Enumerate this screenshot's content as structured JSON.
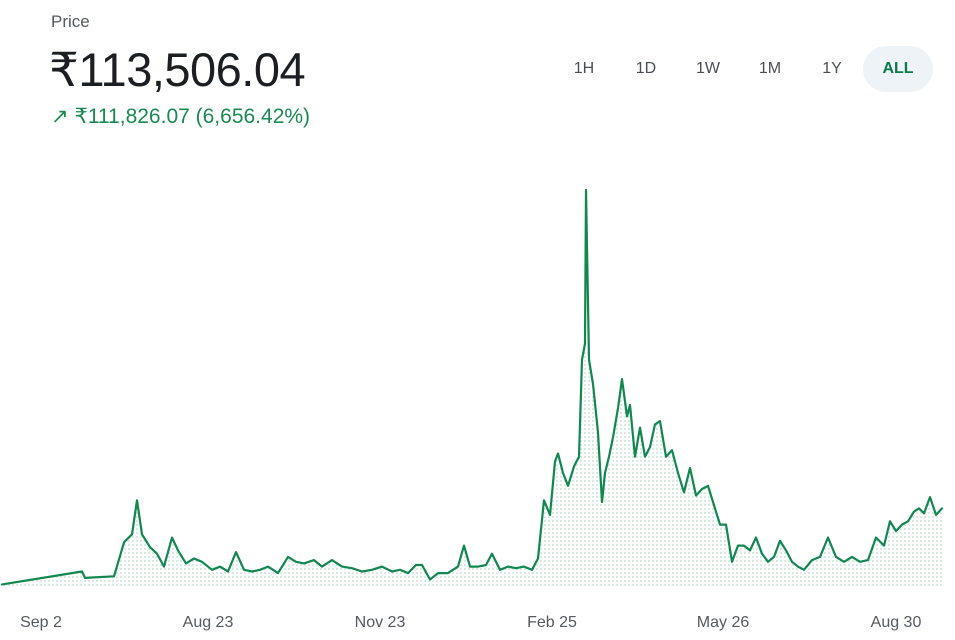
{
  "header": {
    "label": "Price",
    "price": "₹113,506.04",
    "change_icon": "trend-up-arrow-icon",
    "change_arrow": "↗",
    "change_text": "₹111,826.07 (6,656.42%)"
  },
  "ranges": [
    {
      "label": "1H",
      "active": false
    },
    {
      "label": "1D",
      "active": false
    },
    {
      "label": "1W",
      "active": false
    },
    {
      "label": "1M",
      "active": false
    },
    {
      "label": "1Y",
      "active": false
    },
    {
      "label": "ALL",
      "active": true
    }
  ],
  "colors": {
    "line": "#12874f",
    "fill": "#12874f",
    "positive": "#1a8a52",
    "active_bg": "#eef3f8"
  },
  "chart_data": {
    "type": "area",
    "title": "",
    "xlabel": "",
    "ylabel": "",
    "ylim": [
      0,
      245000
    ],
    "grid": false,
    "x_tick_labels": [
      "Sep 2",
      "Aug 23",
      "Nov 23",
      "Feb 25",
      "May 26",
      "Aug 30"
    ],
    "x": [
      0,
      80,
      83,
      112,
      122,
      130,
      135,
      140,
      148,
      155,
      162,
      170,
      176,
      184,
      192,
      200,
      210,
      218,
      226,
      234,
      242,
      250,
      258,
      266,
      276,
      286,
      294,
      302,
      312,
      320,
      330,
      340,
      350,
      360,
      370,
      380,
      390,
      398,
      406,
      414,
      420,
      428,
      436,
      446,
      456,
      462,
      468,
      476,
      484,
      490,
      498,
      506,
      514,
      522,
      530,
      536,
      542,
      548,
      553,
      556,
      561,
      566,
      572,
      577,
      580,
      583,
      584,
      587,
      591,
      596,
      600,
      603,
      607,
      611,
      616,
      620,
      625,
      628,
      633,
      638,
      643,
      648,
      653,
      658,
      664,
      670,
      676,
      682,
      688,
      694,
      700,
      706,
      712,
      718,
      724,
      730,
      736,
      742,
      748,
      754,
      760,
      766,
      772,
      778,
      784,
      790,
      796,
      802,
      810,
      818,
      826,
      834,
      842,
      850,
      858,
      866,
      874,
      882,
      888,
      894,
      900,
      906,
      912,
      917,
      922,
      928,
      934,
      940
    ],
    "values": [
      1000,
      9000,
      5000,
      6000,
      27000,
      32000,
      53000,
      32000,
      24000,
      20000,
      12000,
      30000,
      22000,
      14000,
      17000,
      15000,
      10000,
      12000,
      9000,
      21000,
      10000,
      9000,
      10000,
      12000,
      8000,
      18000,
      15000,
      14000,
      16000,
      12000,
      16000,
      12000,
      11000,
      9000,
      10000,
      12000,
      9000,
      10000,
      8000,
      13000,
      13000,
      4000,
      8000,
      8000,
      12000,
      25000,
      12000,
      12000,
      13000,
      20000,
      10000,
      12000,
      11000,
      12000,
      10000,
      17000,
      53000,
      44000,
      77000,
      82000,
      70000,
      62000,
      74000,
      80000,
      140000,
      150000,
      245000,
      140000,
      125000,
      95000,
      52000,
      70000,
      80000,
      92000,
      110000,
      128000,
      105000,
      112000,
      80000,
      98000,
      80000,
      86000,
      100000,
      102000,
      80000,
      84000,
      70000,
      58000,
      73000,
      56000,
      60000,
      62000,
      50000,
      38000,
      38000,
      15000,
      25000,
      25000,
      22000,
      30000,
      20000,
      15000,
      18000,
      28000,
      22000,
      15000,
      12000,
      10000,
      16000,
      18000,
      30000,
      18000,
      15000,
      18000,
      15000,
      16000,
      30000,
      25000,
      40000,
      34000,
      38000,
      40000,
      46000,
      48000,
      45000,
      55000,
      44000,
      48000
    ]
  }
}
